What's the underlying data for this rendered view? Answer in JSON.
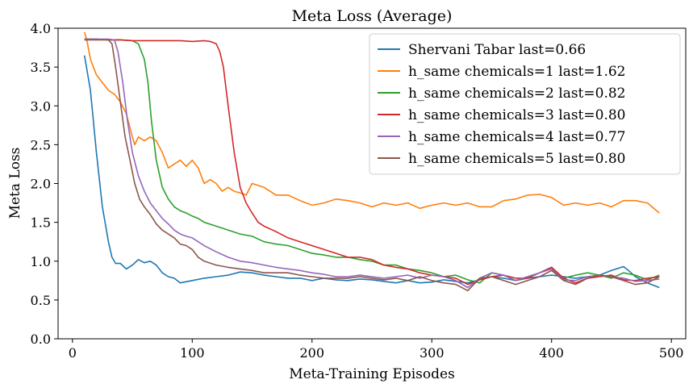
{
  "chart_data": {
    "type": "line",
    "title": "Meta Loss (Average)",
    "xlabel": "Meta-Training Episodes",
    "ylabel": "Meta Loss",
    "xlim": [
      -12,
      512
    ],
    "ylim": [
      0,
      4
    ],
    "xticks": [
      0,
      100,
      200,
      300,
      400,
      500
    ],
    "yticks": [
      0.0,
      0.5,
      1.0,
      1.5,
      2.0,
      2.5,
      3.0,
      3.5,
      4.0
    ],
    "xtick_labels": [
      "0",
      "100",
      "200",
      "300",
      "400",
      "500"
    ],
    "ytick_labels": [
      "0.0",
      "0.5",
      "1.0",
      "1.5",
      "2.0",
      "2.5",
      "3.0",
      "3.5",
      "4.0"
    ],
    "grid": false,
    "legend_position": "upper right",
    "series": [
      {
        "name": "Shervani Tabar last=0.66",
        "color": "#1f77b4",
        "x": [
          10,
          15,
          20,
          25,
          30,
          33,
          36,
          40,
          45,
          50,
          55,
          60,
          65,
          70,
          75,
          80,
          85,
          90,
          100,
          110,
          120,
          130,
          140,
          150,
          160,
          170,
          180,
          190,
          200,
          210,
          220,
          230,
          240,
          250,
          260,
          270,
          280,
          290,
          300,
          310,
          320,
          330,
          340,
          350,
          360,
          370,
          380,
          390,
          400,
          410,
          420,
          430,
          440,
          450,
          460,
          465,
          470,
          480,
          490
        ],
        "y": [
          3.65,
          3.2,
          2.4,
          1.7,
          1.25,
          1.05,
          0.97,
          0.97,
          0.9,
          0.95,
          1.02,
          0.98,
          1.0,
          0.95,
          0.85,
          0.8,
          0.78,
          0.72,
          0.75,
          0.78,
          0.8,
          0.82,
          0.86,
          0.85,
          0.82,
          0.8,
          0.78,
          0.78,
          0.75,
          0.78,
          0.76,
          0.75,
          0.77,
          0.76,
          0.74,
          0.72,
          0.75,
          0.72,
          0.73,
          0.76,
          0.74,
          0.72,
          0.76,
          0.8,
          0.78,
          0.75,
          0.78,
          0.8,
          0.82,
          0.8,
          0.78,
          0.8,
          0.82,
          0.88,
          0.93,
          0.87,
          0.8,
          0.72,
          0.66
        ]
      },
      {
        "name": "h_same chemicals=1 last=1.62",
        "color": "#ff7f0e",
        "x": [
          10,
          12,
          15,
          20,
          25,
          30,
          35,
          40,
          45,
          50,
          52,
          55,
          60,
          65,
          70,
          75,
          80,
          85,
          90,
          95,
          100,
          105,
          110,
          115,
          120,
          125,
          130,
          135,
          140,
          145,
          150,
          160,
          170,
          180,
          190,
          200,
          210,
          220,
          230,
          240,
          250,
          260,
          270,
          280,
          290,
          300,
          310,
          320,
          330,
          340,
          350,
          360,
          370,
          380,
          390,
          400,
          410,
          420,
          430,
          440,
          450,
          460,
          470,
          480,
          490
        ],
        "y": [
          3.95,
          3.85,
          3.6,
          3.4,
          3.3,
          3.2,
          3.15,
          3.05,
          2.9,
          2.6,
          2.5,
          2.6,
          2.55,
          2.6,
          2.55,
          2.4,
          2.2,
          2.25,
          2.3,
          2.22,
          2.3,
          2.2,
          2.0,
          2.05,
          2.0,
          1.9,
          1.95,
          1.9,
          1.88,
          1.85,
          2.0,
          1.95,
          1.85,
          1.85,
          1.78,
          1.72,
          1.75,
          1.8,
          1.78,
          1.75,
          1.7,
          1.75,
          1.72,
          1.75,
          1.68,
          1.72,
          1.75,
          1.72,
          1.75,
          1.7,
          1.7,
          1.78,
          1.8,
          1.85,
          1.86,
          1.82,
          1.72,
          1.75,
          1.72,
          1.75,
          1.7,
          1.78,
          1.78,
          1.75,
          1.62
        ]
      },
      {
        "name": "h_same chemicals=2 last=0.82",
        "color": "#2ca02c",
        "x": [
          10,
          20,
          30,
          40,
          50,
          55,
          60,
          63,
          66,
          70,
          75,
          80,
          85,
          90,
          95,
          100,
          105,
          110,
          120,
          130,
          140,
          150,
          160,
          170,
          180,
          190,
          200,
          210,
          220,
          230,
          240,
          250,
          260,
          270,
          280,
          290,
          300,
          310,
          320,
          330,
          340,
          350,
          360,
          370,
          380,
          390,
          400,
          410,
          420,
          430,
          440,
          450,
          460,
          470,
          480,
          490
        ],
        "y": [
          3.86,
          3.86,
          3.85,
          3.85,
          3.84,
          3.8,
          3.6,
          3.3,
          2.8,
          2.3,
          1.95,
          1.8,
          1.7,
          1.65,
          1.62,
          1.58,
          1.55,
          1.5,
          1.45,
          1.4,
          1.35,
          1.32,
          1.25,
          1.22,
          1.2,
          1.15,
          1.1,
          1.08,
          1.05,
          1.05,
          1.02,
          1.0,
          0.95,
          0.95,
          0.9,
          0.88,
          0.85,
          0.8,
          0.82,
          0.76,
          0.72,
          0.85,
          0.82,
          0.75,
          0.8,
          0.85,
          0.92,
          0.78,
          0.82,
          0.85,
          0.82,
          0.78,
          0.85,
          0.82,
          0.76,
          0.82
        ]
      },
      {
        "name": "h_same chemicals=3 last=0.80",
        "color": "#d62728",
        "x": [
          10,
          20,
          30,
          40,
          50,
          60,
          70,
          80,
          90,
          100,
          110,
          115,
          120,
          123,
          126,
          130,
          135,
          140,
          145,
          150,
          155,
          160,
          170,
          180,
          190,
          200,
          210,
          220,
          230,
          240,
          250,
          260,
          270,
          280,
          290,
          300,
          310,
          320,
          330,
          340,
          350,
          360,
          370,
          380,
          390,
          400,
          410,
          420,
          430,
          440,
          450,
          460,
          470,
          480,
          490
        ],
        "y": [
          3.86,
          3.86,
          3.85,
          3.85,
          3.84,
          3.84,
          3.84,
          3.84,
          3.84,
          3.83,
          3.84,
          3.83,
          3.8,
          3.7,
          3.5,
          3.0,
          2.4,
          1.95,
          1.75,
          1.62,
          1.5,
          1.45,
          1.38,
          1.3,
          1.25,
          1.2,
          1.15,
          1.1,
          1.05,
          1.05,
          1.02,
          0.95,
          0.92,
          0.9,
          0.85,
          0.82,
          0.8,
          0.78,
          0.7,
          0.76,
          0.8,
          0.82,
          0.78,
          0.78,
          0.85,
          0.92,
          0.78,
          0.72,
          0.78,
          0.8,
          0.82,
          0.76,
          0.75,
          0.78,
          0.8
        ]
      },
      {
        "name": "h_same chemicals=4 last=0.77",
        "color": "#9467bd",
        "x": [
          10,
          20,
          30,
          35,
          38,
          42,
          46,
          50,
          55,
          60,
          65,
          70,
          75,
          80,
          85,
          90,
          95,
          100,
          105,
          110,
          120,
          130,
          140,
          150,
          160,
          170,
          180,
          190,
          200,
          210,
          220,
          230,
          240,
          250,
          260,
          270,
          280,
          290,
          300,
          310,
          320,
          330,
          340,
          350,
          360,
          370,
          380,
          390,
          400,
          410,
          420,
          430,
          440,
          450,
          460,
          470,
          480,
          490
        ],
        "y": [
          3.86,
          3.86,
          3.86,
          3.85,
          3.7,
          3.3,
          2.8,
          2.4,
          2.1,
          1.9,
          1.75,
          1.65,
          1.55,
          1.48,
          1.4,
          1.35,
          1.32,
          1.3,
          1.25,
          1.2,
          1.12,
          1.05,
          1.0,
          0.98,
          0.95,
          0.92,
          0.9,
          0.88,
          0.85,
          0.83,
          0.8,
          0.8,
          0.82,
          0.8,
          0.78,
          0.8,
          0.82,
          0.78,
          0.82,
          0.8,
          0.75,
          0.66,
          0.78,
          0.85,
          0.82,
          0.75,
          0.8,
          0.85,
          0.9,
          0.76,
          0.75,
          0.8,
          0.82,
          0.8,
          0.78,
          0.74,
          0.75,
          0.77
        ]
      },
      {
        "name": "h_same chemicals=5 last=0.80",
        "color": "#8c564b",
        "x": [
          10,
          20,
          30,
          33,
          36,
          40,
          44,
          48,
          52,
          56,
          60,
          65,
          70,
          75,
          80,
          85,
          90,
          95,
          100,
          105,
          110,
          120,
          130,
          140,
          150,
          160,
          170,
          180,
          190,
          200,
          210,
          220,
          230,
          240,
          250,
          260,
          270,
          280,
          290,
          300,
          310,
          320,
          330,
          340,
          350,
          360,
          370,
          380,
          390,
          400,
          410,
          420,
          430,
          440,
          450,
          460,
          470,
          480,
          490
        ],
        "y": [
          3.85,
          3.85,
          3.85,
          3.8,
          3.5,
          3.05,
          2.6,
          2.3,
          2.0,
          1.8,
          1.7,
          1.6,
          1.48,
          1.4,
          1.35,
          1.3,
          1.22,
          1.2,
          1.15,
          1.05,
          1.0,
          0.95,
          0.92,
          0.9,
          0.88,
          0.85,
          0.85,
          0.85,
          0.82,
          0.8,
          0.78,
          0.78,
          0.78,
          0.8,
          0.78,
          0.76,
          0.78,
          0.75,
          0.8,
          0.75,
          0.72,
          0.7,
          0.62,
          0.78,
          0.8,
          0.75,
          0.7,
          0.75,
          0.8,
          0.88,
          0.75,
          0.7,
          0.78,
          0.82,
          0.8,
          0.75,
          0.7,
          0.72,
          0.8
        ]
      }
    ]
  }
}
